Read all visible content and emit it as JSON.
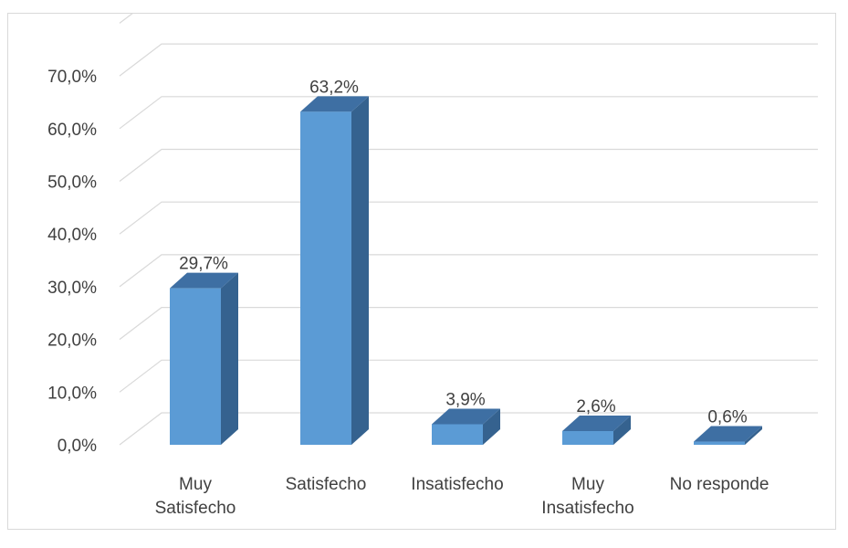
{
  "chart_data": {
    "type": "bar",
    "categories": [
      "Muy Satisfecho",
      "Satisfecho",
      "Insatisfecho",
      "Muy Insatisfecho",
      "No responde"
    ],
    "category_lines": [
      [
        "Muy",
        "Satisfecho"
      ],
      [
        "Satisfecho"
      ],
      [
        "Insatisfecho"
      ],
      [
        "Muy",
        "Insatisfecho"
      ],
      [
        "No responde"
      ]
    ],
    "values": [
      29.7,
      63.2,
      3.9,
      2.6,
      0.6
    ],
    "data_labels": [
      "29,7%",
      "63,2%",
      "3,9%",
      "2,6%",
      "0,6%"
    ],
    "yticks": [
      0,
      10,
      20,
      30,
      40,
      50,
      60,
      70
    ],
    "ytick_labels": [
      "0,0%",
      "10,0%",
      "20,0%",
      "30,0%",
      "40,0%",
      "50,0%",
      "60,0%",
      "70,0%"
    ],
    "ylim": [
      0,
      80
    ],
    "style": "3d-column",
    "grid": true,
    "colors": {
      "bar_front": "#5b9bd5",
      "bar_top": "#3e6fa3",
      "bar_side": "#35628f",
      "grid": "#d9d9d9",
      "text": "#404040"
    }
  }
}
